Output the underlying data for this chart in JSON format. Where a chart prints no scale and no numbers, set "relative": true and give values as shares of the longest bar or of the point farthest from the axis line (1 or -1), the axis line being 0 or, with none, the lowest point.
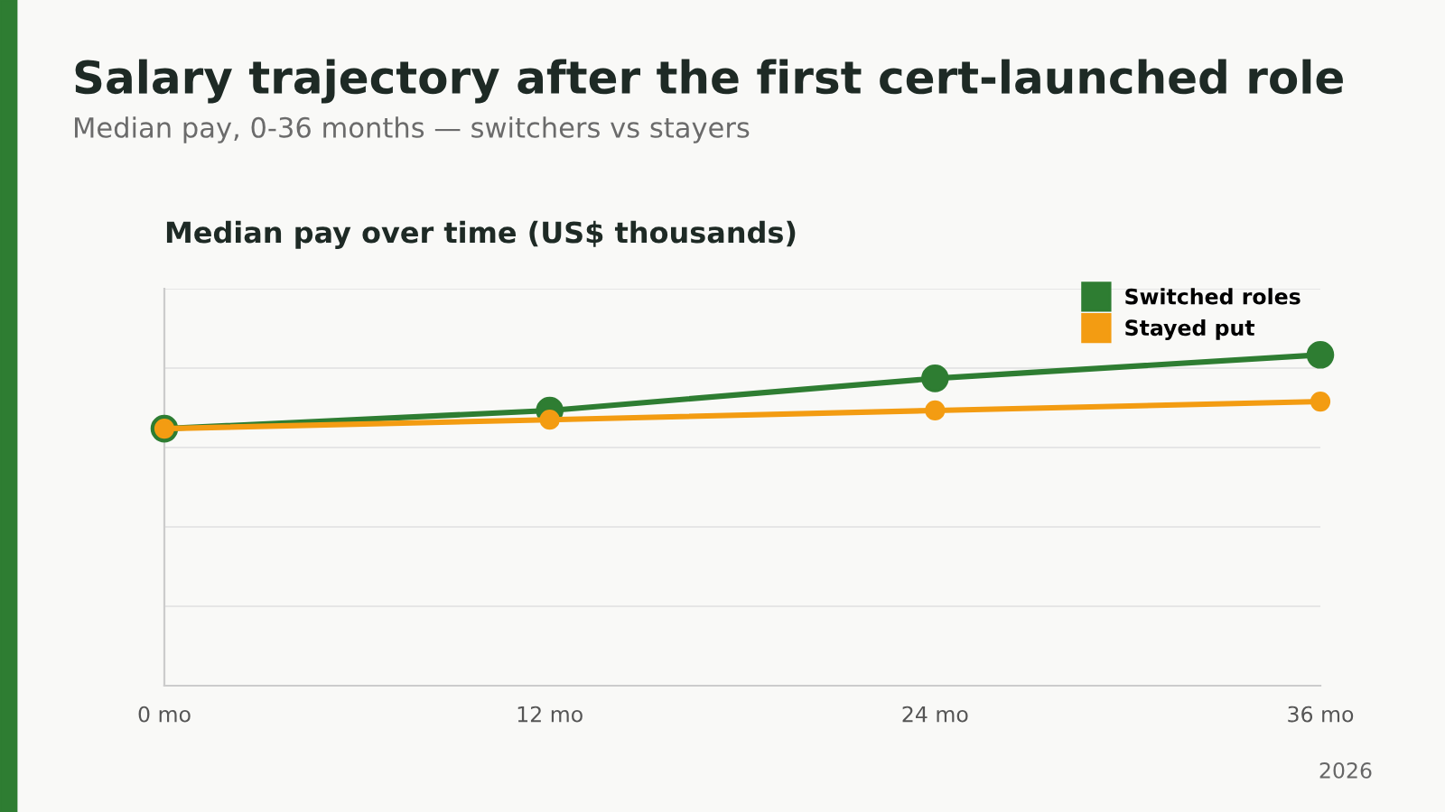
{
  "chart_data": {
    "type": "line",
    "title": "Salary trajectory after the first cert-launched role",
    "subtitle": "Median pay, 0-36 months — switchers vs stayers",
    "annotations": [
      "Median pay over time (US$ thousands)",
      "2026"
    ],
    "categories": [
      "0 mo",
      "12 mo",
      "24 mo",
      "36 mo"
    ],
    "relative": true,
    "series": [
      {
        "name": "Switched roles",
        "color": "#2e7d32",
        "values": [
          0.777,
          0.832,
          0.929,
          1
        ]
      },
      {
        "name": "Stayed put",
        "color": "#f39c12",
        "values": [
          0.777,
          0.804,
          0.832,
          0.859
        ]
      }
    ],
    "marker": "circle",
    "line_style": "solid",
    "grid": "y",
    "legend": "top right"
  }
}
